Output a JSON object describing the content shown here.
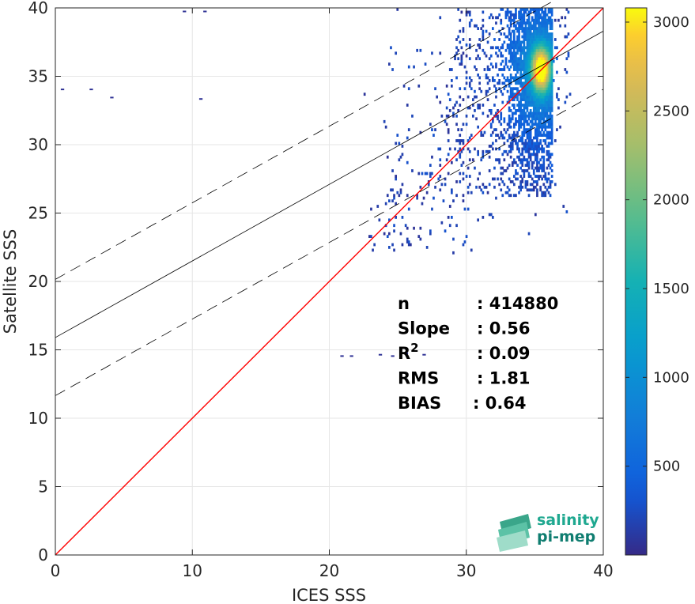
{
  "chart_data": {
    "type": "heatmap",
    "xlabel": "ICES SSS",
    "ylabel": "Satellite SSS",
    "xlim": [
      0,
      40
    ],
    "ylim": [
      0,
      40
    ],
    "xticks": [
      0,
      10,
      20,
      30,
      40
    ],
    "yticks": [
      0,
      5,
      10,
      15,
      20,
      25,
      30,
      35,
      40
    ],
    "grid": true,
    "colorbar": {
      "range": [
        0,
        3080
      ],
      "ticks": [
        500,
        1000,
        1500,
        2000,
        2500,
        3000
      ],
      "colormap": "parula"
    },
    "density_core": {
      "x": [
        29.5,
        36
      ],
      "y": [
        26,
        40
      ],
      "peak": [
        35.4,
        35.4
      ]
    },
    "identity_line": {
      "x": [
        0,
        40
      ],
      "y": [
        0,
        40
      ],
      "color": "#ff0000"
    },
    "regression": {
      "slope": 0.56,
      "intercept": 15.9,
      "band_offset": 4.25,
      "line_color": "#000000"
    },
    "stats": [
      {
        "label": "n",
        "value": ": 414880"
      },
      {
        "label": "Slope",
        "value": ": 0.56"
      },
      {
        "label": "R",
        "sup": "2",
        "value": ": 0.09"
      },
      {
        "label": "RMS",
        "value": ": 1.81"
      },
      {
        "label": "BIAS",
        "value": ": 0.64"
      }
    ]
  },
  "logo": {
    "line1": "salinity",
    "line2": "pi-mep"
  }
}
